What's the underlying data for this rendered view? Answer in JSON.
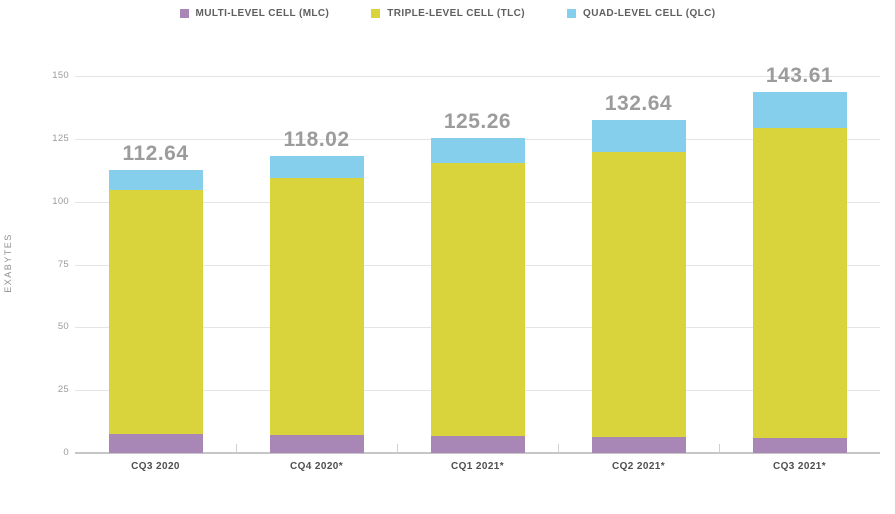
{
  "chart_data": {
    "type": "bar",
    "stacked": true,
    "title": "",
    "ylabel": "EXABYTES",
    "xlabel": "",
    "ylim": [
      0,
      150
    ],
    "yticks": [
      0,
      25,
      50,
      75,
      100,
      125,
      150
    ],
    "grid": true,
    "legend_position": "top",
    "categories": [
      "CQ3 2020",
      "CQ4 2020*",
      "CQ1 2021*",
      "CQ2 2021*",
      "CQ3 2021*"
    ],
    "series": [
      {
        "name": "MULTI-LEVEL CELL (MLC)",
        "color": "#a886b6",
        "values": [
          7.5,
          7.3,
          6.8,
          6.2,
          5.8
        ]
      },
      {
        "name": "TRIPLE-LEVEL CELL (TLC)",
        "color": "#d9d43c",
        "values": [
          97.04,
          102.22,
          108.66,
          113.64,
          123.41
        ]
      },
      {
        "name": "QUAD-LEVEL CELL (QLC)",
        "color": "#85cfed",
        "values": [
          8.1,
          8.5,
          9.8,
          12.8,
          14.4
        ]
      }
    ],
    "totals": [
      112.64,
      118.02,
      125.26,
      132.64,
      143.61
    ],
    "total_labels": [
      "112.64",
      "118.02",
      "125.26",
      "132.64",
      "143.61"
    ],
    "colors": {
      "gridline": "#e4e4e4",
      "baseline": "#c6c6c6",
      "value_label": "#9c9c9c",
      "axis_text": "#9b9b9b",
      "category_text": "#4f4f4f",
      "legend_text": "#5f5f5f"
    }
  }
}
